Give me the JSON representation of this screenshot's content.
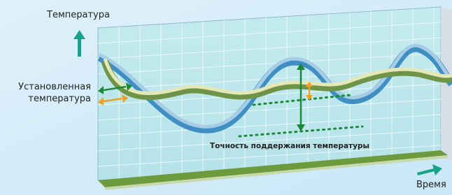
{
  "labels": {
    "y_axis": "Температура",
    "set_temp": [
      "Установленная",
      "температура"
    ],
    "x_axis": "Время",
    "accuracy": "Точность поддержания температуры"
  }
}
